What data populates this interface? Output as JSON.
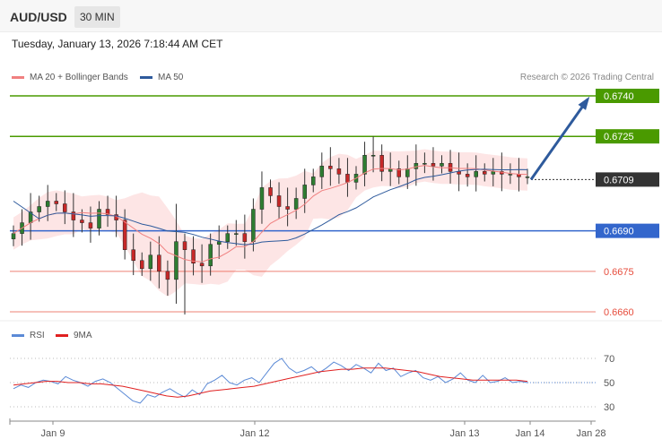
{
  "header": {
    "symbol": "AUD/USD",
    "interval": "30 MIN"
  },
  "timestamp": "Tuesday, January 13, 2026 7:18:44 AM CET",
  "legend": {
    "ma20": {
      "label": "MA 20 + Bollinger Bands",
      "color": "#f08080"
    },
    "ma50": {
      "label": "MA 50",
      "color": "#2e5a9c"
    }
  },
  "credit": "Research © 2026 Trading Central",
  "rsi_legend": {
    "rsi": {
      "label": "RSI",
      "color": "#5b8ad6"
    },
    "ma9": {
      "label": "9MA",
      "color": "#e02020"
    }
  },
  "chart_data": [
    {
      "type": "candlestick",
      "ylim": [
        0.6655,
        0.6745
      ],
      "price_levels": [
        {
          "value": "0.6740",
          "kind": "resistance",
          "color": "#4a9a00"
        },
        {
          "value": "0.6725",
          "kind": "resistance",
          "color": "#4a9a00"
        },
        {
          "value": "0.6709",
          "kind": "current",
          "color": "#333333"
        },
        {
          "value": "0.6690",
          "kind": "pivot",
          "color": "#3366cc"
        },
        {
          "value": "0.6675",
          "kind": "support",
          "color": "#e74c3c"
        },
        {
          "value": "0.6660",
          "kind": "support",
          "color": "#e74c3c"
        }
      ],
      "x_ticks": [
        "Jan 9",
        "Jan 12",
        "Jan 13",
        "Jan 14",
        "Jan 28"
      ],
      "close_path": [
        0.6689,
        0.6693,
        0.6697,
        0.6699,
        0.6701,
        0.67,
        0.6697,
        0.6694,
        0.6693,
        0.6691,
        0.6698,
        0.6696,
        0.6694,
        0.6683,
        0.6679,
        0.6676,
        0.6681,
        0.6675,
        0.6672,
        0.6686,
        0.6683,
        0.6678,
        0.6677,
        0.6685,
        0.6686,
        0.6689,
        0.6689,
        0.6686,
        0.6698,
        0.6706,
        0.6703,
        0.6699,
        0.6698,
        0.6702,
        0.6707,
        0.671,
        0.6714,
        0.6713,
        0.6711,
        0.6708,
        0.6711,
        0.6718,
        0.6718,
        0.6712,
        0.6713,
        0.671,
        0.6713,
        0.6715,
        0.6715,
        0.6714,
        0.6715,
        0.6712,
        0.6711,
        0.671,
        0.6712,
        0.6711,
        0.6712,
        0.6711,
        0.6711,
        0.671,
        0.671
      ],
      "projection": {
        "from": 0.6709,
        "to": 0.674
      }
    },
    {
      "type": "line",
      "title": "RSI",
      "ylim": [
        20,
        80
      ],
      "y_ticks": [
        "70",
        "50",
        "30"
      ],
      "series": [
        {
          "name": "RSI",
          "values": [
            45,
            48,
            46,
            50,
            52,
            51,
            49,
            55,
            52,
            50,
            47,
            51,
            53,
            50,
            45,
            40,
            35,
            33,
            40,
            38,
            42,
            45,
            41,
            38,
            44,
            40,
            49,
            52,
            56,
            50,
            48,
            52,
            54,
            50,
            58,
            66,
            70,
            62,
            58,
            60,
            63,
            58,
            62,
            67,
            64,
            60,
            65,
            62,
            58,
            66,
            60,
            62,
            55,
            58,
            60,
            54,
            52,
            55,
            50,
            53,
            58,
            52,
            50,
            56,
            50,
            51,
            54,
            50,
            51,
            50
          ]
        },
        {
          "name": "9MA",
          "values": [
            48,
            49,
            50,
            51,
            51,
            50,
            50,
            49,
            49,
            48,
            47,
            45,
            43,
            41,
            39,
            38,
            39,
            41,
            43,
            44,
            45,
            46,
            47,
            49,
            51,
            53,
            55,
            57,
            59,
            60,
            61,
            61,
            62,
            62,
            62,
            61,
            60,
            59,
            57,
            55,
            54,
            53,
            52,
            52,
            52,
            52,
            52,
            51
          ]
        }
      ]
    }
  ]
}
